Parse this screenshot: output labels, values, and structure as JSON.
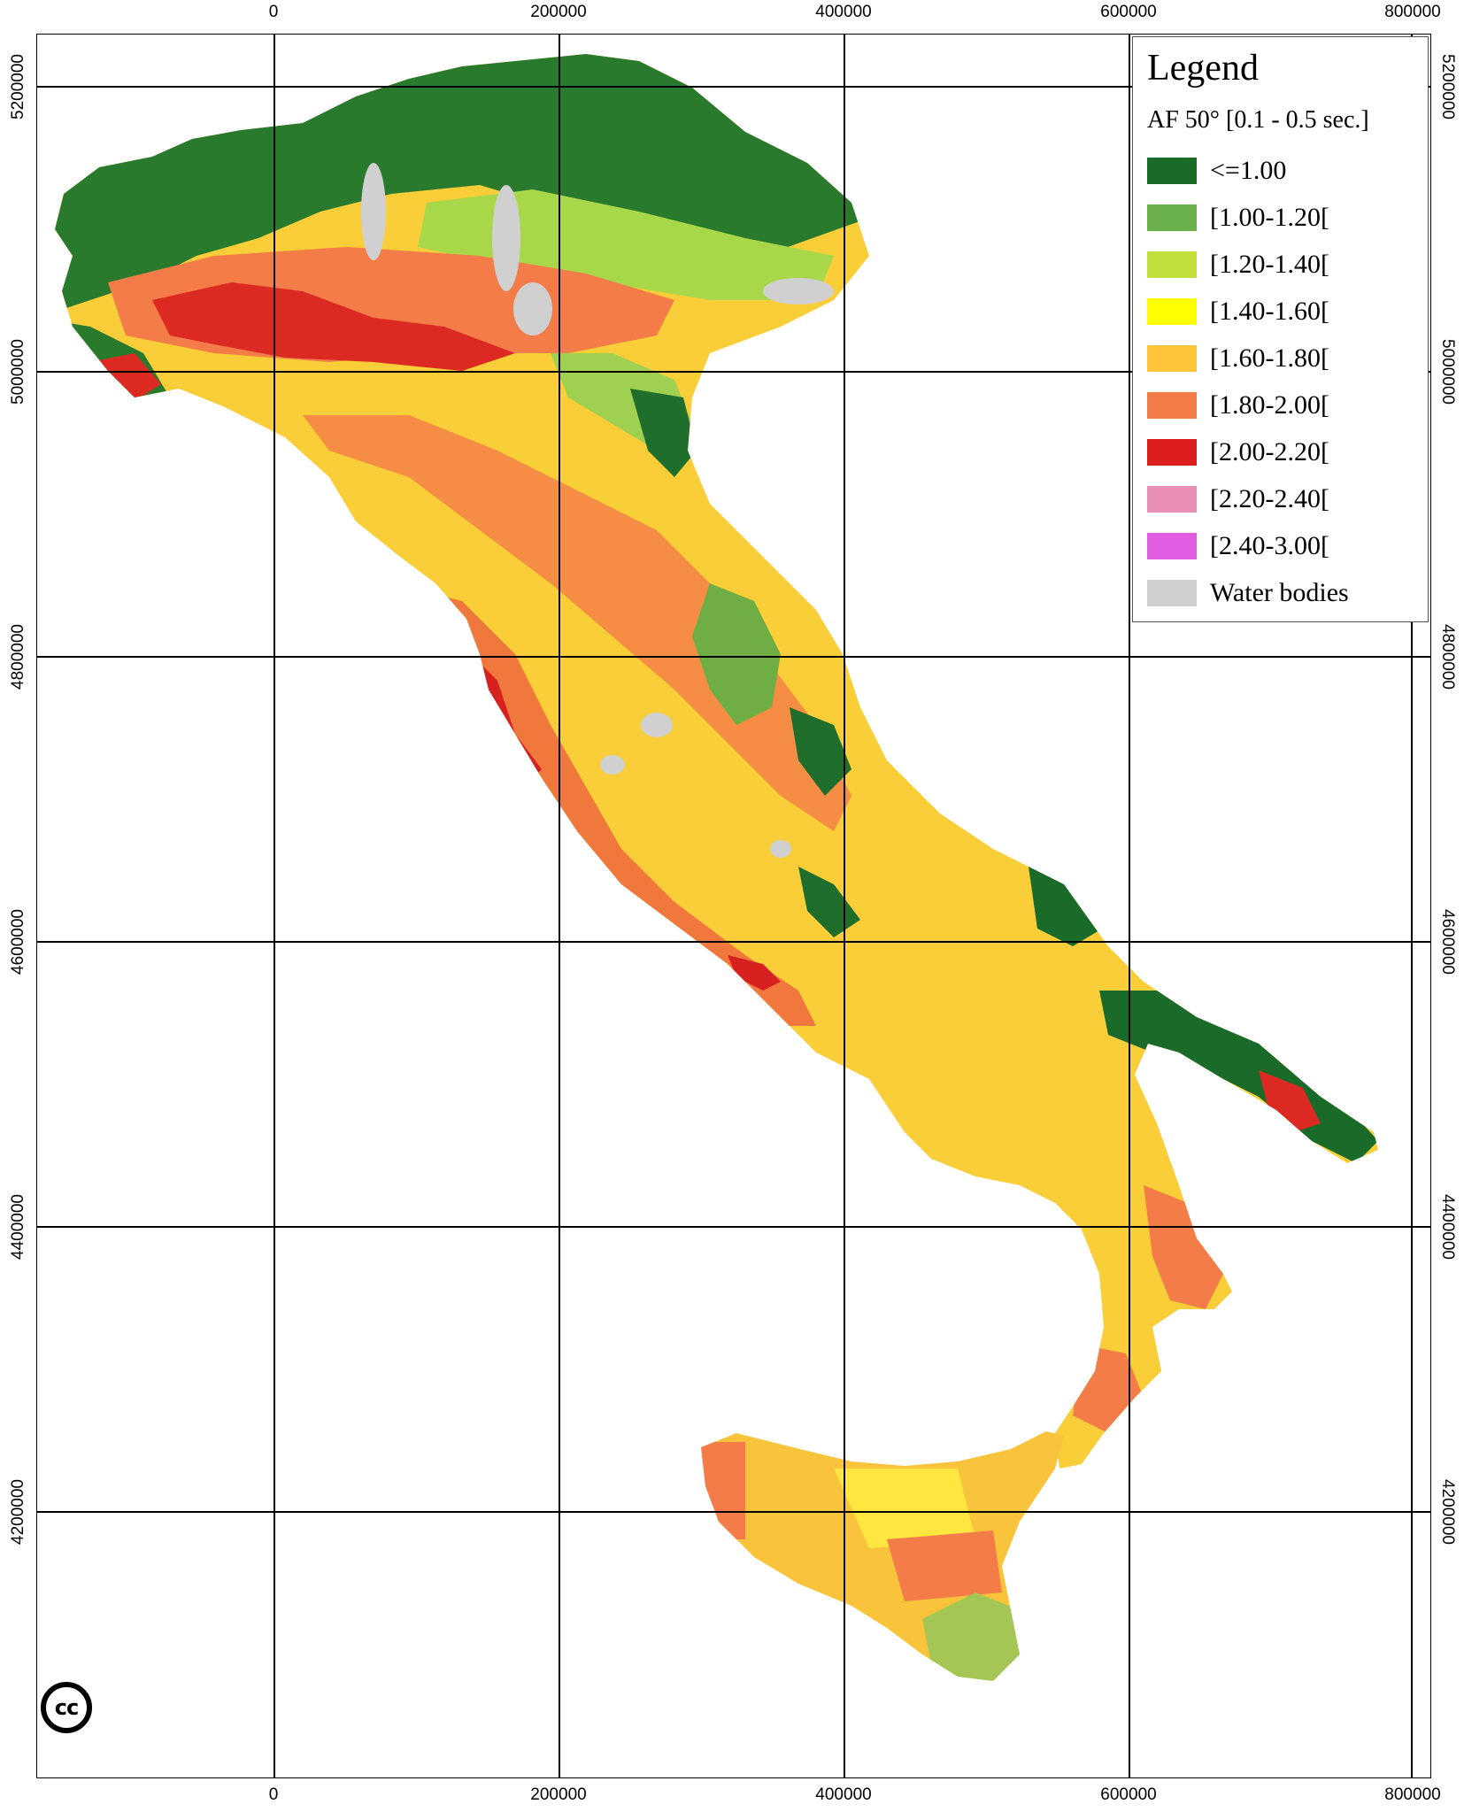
{
  "legend": {
    "title": "Legend",
    "subtitle": "AF 50° [0.1 - 0.5 sec.]",
    "items": [
      {
        "label": "<=1.00",
        "color": "#1a6b2a"
      },
      {
        "label": "[1.00-1.20[",
        "color": "#6ab04c"
      },
      {
        "label": "[1.20-1.40[",
        "color": "#c2e03c"
      },
      {
        "label": "[1.40-1.60[",
        "color": "#ffff00"
      },
      {
        "label": "[1.60-1.80[",
        "color": "#ffc53a"
      },
      {
        "label": "[1.80-2.00[",
        "color": "#f47c48"
      },
      {
        "label": "[2.00-2.20[",
        "color": "#dc1e1e"
      },
      {
        "label": "[2.20-2.40[",
        "color": "#e88eb6"
      },
      {
        "label": "[2.40-3.00[",
        "color": "#e05ce0"
      },
      {
        "label": "Water bodies",
        "color": "#d0d0d0"
      }
    ]
  },
  "axes": {
    "x_ticks": [
      "0",
      "200000",
      "400000",
      "600000",
      "800000"
    ],
    "y_ticks": [
      "5200000",
      "5000000",
      "4800000",
      "4600000",
      "4400000",
      "4200000"
    ]
  },
  "cc_logo_text": "cc",
  "colors": {
    "background": "#ffffff",
    "grid": "#000000",
    "water": "#d0d0d0"
  }
}
